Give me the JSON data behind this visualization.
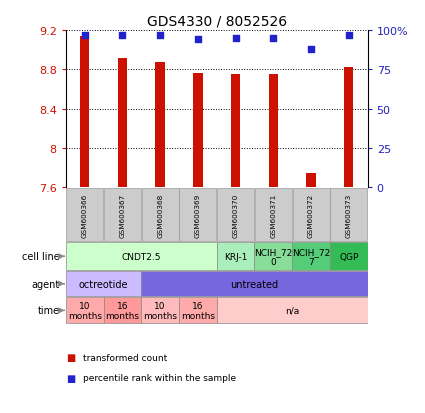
{
  "title": "GDS4330 / 8052526",
  "samples": [
    "GSM600366",
    "GSM600367",
    "GSM600368",
    "GSM600369",
    "GSM600370",
    "GSM600371",
    "GSM600372",
    "GSM600373"
  ],
  "bar_values": [
    9.14,
    8.92,
    8.87,
    8.76,
    8.75,
    8.75,
    7.74,
    8.82
  ],
  "dot_values": [
    97,
    97,
    97,
    94,
    95,
    95,
    88,
    97
  ],
  "ylim": [
    7.6,
    9.2
  ],
  "yticks": [
    7.6,
    8.0,
    8.4,
    8.8,
    9.2
  ],
  "ytick_labels": [
    "7.6",
    "8",
    "8.4",
    "8.8",
    "9.2"
  ],
  "y2lim": [
    0,
    100
  ],
  "y2ticks": [
    0,
    25,
    50,
    75,
    100
  ],
  "y2tick_labels": [
    "0",
    "25",
    "50",
    "75",
    "100%"
  ],
  "bar_color": "#cc1100",
  "dot_color": "#2222cc",
  "bar_bottom": 7.6,
  "bar_width": 0.25,
  "cell_line_data": {
    "groups": [
      {
        "label": "CNDT2.5",
        "start": 0,
        "end": 4,
        "color": "#ccffcc"
      },
      {
        "label": "KRJ-1",
        "start": 4,
        "end": 5,
        "color": "#aaeebb"
      },
      {
        "label": "NCIH_72\n0",
        "start": 5,
        "end": 6,
        "color": "#88dd99"
      },
      {
        "label": "NCIH_72\n7",
        "start": 6,
        "end": 7,
        "color": "#55cc77"
      },
      {
        "label": "QGP",
        "start": 7,
        "end": 8,
        "color": "#33bb55"
      }
    ]
  },
  "agent_data": {
    "groups": [
      {
        "label": "octreotide",
        "start": 0,
        "end": 2,
        "color": "#ccbbff"
      },
      {
        "label": "untreated",
        "start": 2,
        "end": 8,
        "color": "#7766dd"
      }
    ]
  },
  "time_data": {
    "groups": [
      {
        "label": "10\nmonths",
        "start": 0,
        "end": 1,
        "color": "#ffaaaa"
      },
      {
        "label": "16\nmonths",
        "start": 1,
        "end": 2,
        "color": "#ff9999"
      },
      {
        "label": "10\nmonths",
        "start": 2,
        "end": 3,
        "color": "#ffbbbb"
      },
      {
        "label": "16\nmonths",
        "start": 3,
        "end": 4,
        "color": "#ffaaaa"
      },
      {
        "label": "n/a",
        "start": 4,
        "end": 8,
        "color": "#ffcccc"
      }
    ]
  },
  "row_labels": [
    "cell line",
    "agent",
    "time"
  ],
  "legend_items": [
    {
      "color": "#cc1100",
      "label": "transformed count"
    },
    {
      "color": "#2222cc",
      "label": "percentile rank within the sample"
    }
  ]
}
